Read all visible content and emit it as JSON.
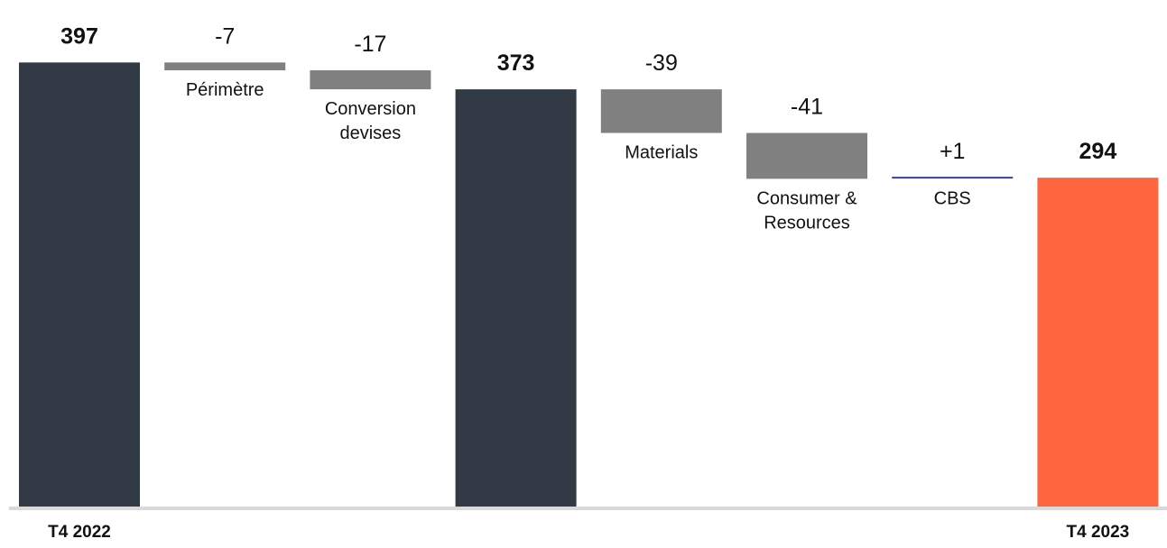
{
  "chart_data": {
    "type": "waterfall",
    "categories": [
      "T4 2022",
      "Périmètre",
      "Conversion devises",
      "",
      "Materials",
      "Consumer & Resources",
      "CBS",
      "T4 2023"
    ],
    "items": [
      {
        "kind": "total",
        "value": 397,
        "value_label": "397",
        "category_lines": [],
        "axis_label": "T4 2022"
      },
      {
        "kind": "delta",
        "value": -7,
        "value_label": "-7",
        "category_lines": [
          "Périmètre"
        ],
        "axis_label": ""
      },
      {
        "kind": "delta",
        "value": -17,
        "value_label": "-17",
        "category_lines": [
          "Conversion",
          "devises"
        ],
        "axis_label": ""
      },
      {
        "kind": "total",
        "value": 373,
        "value_label": "373",
        "category_lines": [],
        "axis_label": ""
      },
      {
        "kind": "delta",
        "value": -39,
        "value_label": "-39",
        "category_lines": [
          "Materials"
        ],
        "axis_label": ""
      },
      {
        "kind": "delta",
        "value": -41,
        "value_label": "-41",
        "category_lines": [
          "Consumer &",
          "Resources"
        ],
        "axis_label": ""
      },
      {
        "kind": "delta",
        "value": 1,
        "value_label": "+1",
        "category_lines": [
          "CBS"
        ],
        "axis_label": ""
      },
      {
        "kind": "total",
        "value": 294,
        "value_label": "294",
        "category_lines": [],
        "axis_label": "T4 2023"
      }
    ],
    "colors": {
      "total": "#323b45",
      "final_total": "#ff6640",
      "negative": "#808080",
      "positive": "#3a3f9a",
      "baseline": "#d9d9d9"
    },
    "title": "",
    "xlabel": "",
    "ylabel": "",
    "grid": false,
    "legend": "none"
  }
}
